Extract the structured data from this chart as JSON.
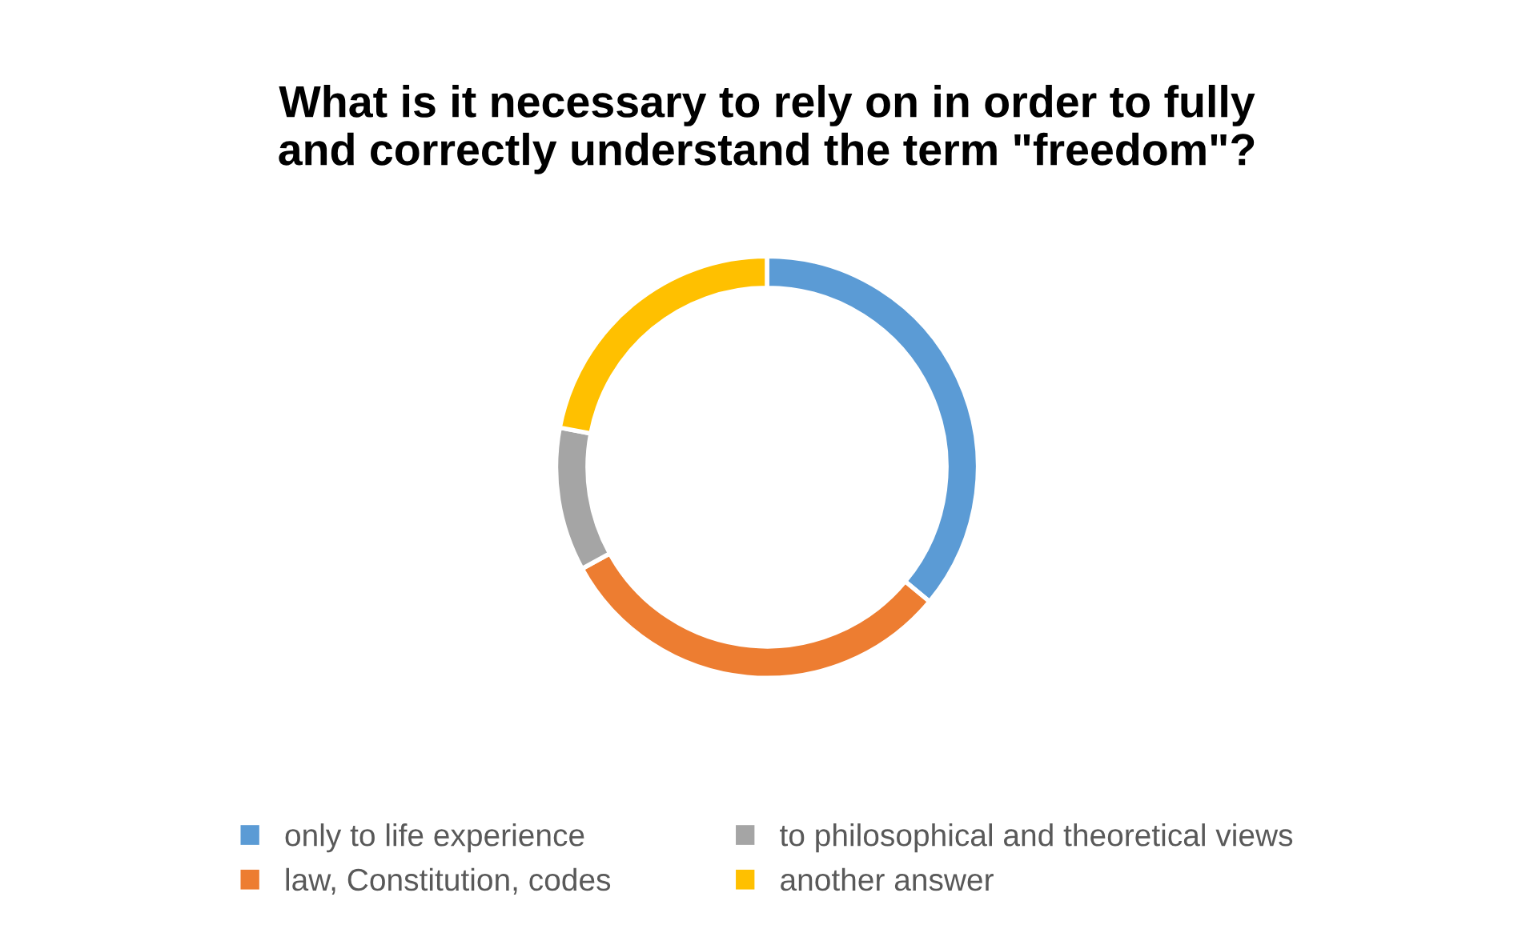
{
  "chart_data": {
    "type": "donut",
    "title": "What is it necessary to rely on in order to fully\nand correctly understand the term \"freedom\"?",
    "categories": [
      "only to life experience",
      "law, Constitution, codes",
      "to philosophical and theoretical views",
      "another answer"
    ],
    "values": [
      36,
      31,
      11,
      22
    ],
    "colors": [
      "#5b9bd5",
      "#ed7d31",
      "#a5a5a5",
      "#ffc000"
    ],
    "legend": "bottom"
  }
}
